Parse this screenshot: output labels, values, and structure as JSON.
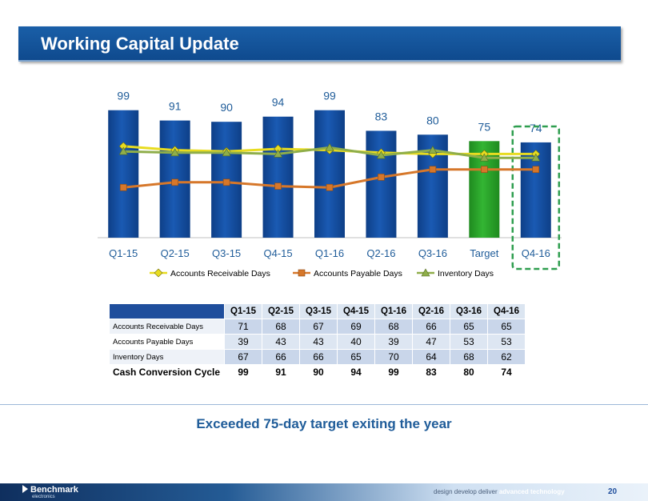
{
  "slide": {
    "title": "Working Capital Update",
    "summary": "Exceeded 75-day target exiting the year",
    "page_number": "20"
  },
  "footer": {
    "logo_text": "Benchmark",
    "logo_sub": "electronics",
    "tagline_prefix": "design develop deliver",
    "tagline_bold": "advanced technology"
  },
  "chart_data": {
    "type": "bar",
    "categories": [
      "Q1-15",
      "Q2-15",
      "Q3-15",
      "Q4-15",
      "Q1-16",
      "Q2-16",
      "Q3-16",
      "Target",
      "Q4-16"
    ],
    "values": [
      99,
      91,
      90,
      94,
      99,
      83,
      80,
      75,
      74
    ],
    "ylim": [
      0,
      110
    ],
    "highlight": "Target",
    "boxed": "Q4-16",
    "colors": {
      "bar": "#1a5ab3",
      "target": "#33b533",
      "label": "#1f5c99",
      "box": "#2e9e4f"
    },
    "series": [
      {
        "name": "Accounts Receivable Days",
        "values": [
          71,
          68,
          67,
          69,
          68,
          66,
          65,
          65,
          65
        ],
        "color": "#e8dc20",
        "marker": "diamond"
      },
      {
        "name": "Accounts Payable Days",
        "values": [
          39,
          43,
          43,
          40,
          39,
          47,
          53,
          53,
          53
        ],
        "color": "#d6772a",
        "marker": "square"
      },
      {
        "name": "Inventory Days",
        "values": [
          67,
          66,
          66,
          65,
          70,
          64,
          68,
          62,
          62
        ],
        "color": "#8fae4a",
        "marker": "triangle"
      }
    ],
    "legend_position": "bottom"
  },
  "table": {
    "headers": [
      "Q1-15",
      "Q2-15",
      "Q3-15",
      "Q4-15",
      "Q1-16",
      "Q2-16",
      "Q3-16",
      "Q4-16"
    ],
    "rows": [
      {
        "label": "Accounts Receivable Days",
        "values": [
          "71",
          "68",
          "67",
          "69",
          "68",
          "66",
          "65",
          "65"
        ]
      },
      {
        "label": "Accounts Payable Days",
        "values": [
          "39",
          "43",
          "43",
          "40",
          "39",
          "47",
          "53",
          "53"
        ]
      },
      {
        "label": "Inventory Days",
        "values": [
          "67",
          "66",
          "66",
          "65",
          "70",
          "64",
          "68",
          "62"
        ]
      },
      {
        "label": "Cash Conversion Cycle",
        "values": [
          "99",
          "91",
          "90",
          "94",
          "99",
          "83",
          "80",
          "74"
        ]
      }
    ]
  }
}
